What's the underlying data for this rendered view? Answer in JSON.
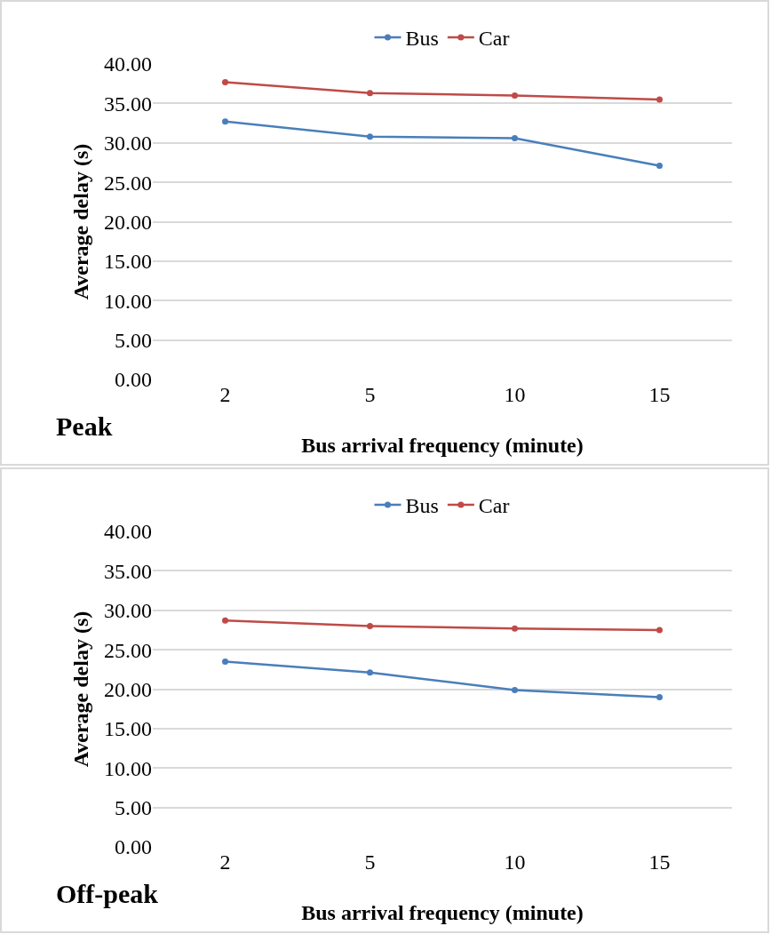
{
  "chart_data": [
    {
      "type": "line",
      "xlabel": "Bus arrival frequency (minute)",
      "ylabel": "Average delay (s)",
      "categories": [
        "2",
        "5",
        "10",
        "15"
      ],
      "series": [
        {
          "name": "Bus",
          "color": "#4a7ebb",
          "values": [
            32.7,
            30.8,
            30.6,
            27.1
          ]
        },
        {
          "name": "Car",
          "color": "#be4b48",
          "values": [
            37.7,
            36.3,
            36.0,
            35.5
          ]
        }
      ],
      "ylim": [
        0,
        40
      ],
      "yticks": [
        {
          "value": 0,
          "label": "0.00"
        },
        {
          "value": 5,
          "label": "5.00"
        },
        {
          "value": 10,
          "label": "10.00"
        },
        {
          "value": 15,
          "label": "15.00"
        },
        {
          "value": 20,
          "label": "20.00"
        },
        {
          "value": 25,
          "label": "25.00"
        },
        {
          "value": 30,
          "label": "30.00"
        },
        {
          "value": 35,
          "label": "35.00"
        },
        {
          "value": 40,
          "label": "40.00"
        }
      ],
      "grid": "y",
      "legend": "top",
      "marker": "circle",
      "line_style": "solid",
      "annotations": [
        "Peak"
      ]
    },
    {
      "type": "line",
      "xlabel": "Bus arrival frequency (minute)",
      "ylabel": "Average delay (s)",
      "categories": [
        "2",
        "5",
        "10",
        "15"
      ],
      "series": [
        {
          "name": "Bus",
          "color": "#4a7ebb",
          "values": [
            23.5,
            22.1,
            19.9,
            19.0
          ]
        },
        {
          "name": "Car",
          "color": "#be4b48",
          "values": [
            28.7,
            28.0,
            27.7,
            27.5
          ]
        }
      ],
      "ylim": [
        0,
        40
      ],
      "yticks": [
        {
          "value": 0,
          "label": "0.00"
        },
        {
          "value": 5,
          "label": "5.00"
        },
        {
          "value": 10,
          "label": "10.00"
        },
        {
          "value": 15,
          "label": "15.00"
        },
        {
          "value": 20,
          "label": "20.00"
        },
        {
          "value": 25,
          "label": "25.00"
        },
        {
          "value": 30,
          "label": "30.00"
        },
        {
          "value": 35,
          "label": "35.00"
        },
        {
          "value": 40,
          "label": "40.00"
        }
      ],
      "grid": "y",
      "legend": "top",
      "marker": "circle",
      "line_style": "solid",
      "annotations": [
        "Off-peak"
      ]
    }
  ]
}
